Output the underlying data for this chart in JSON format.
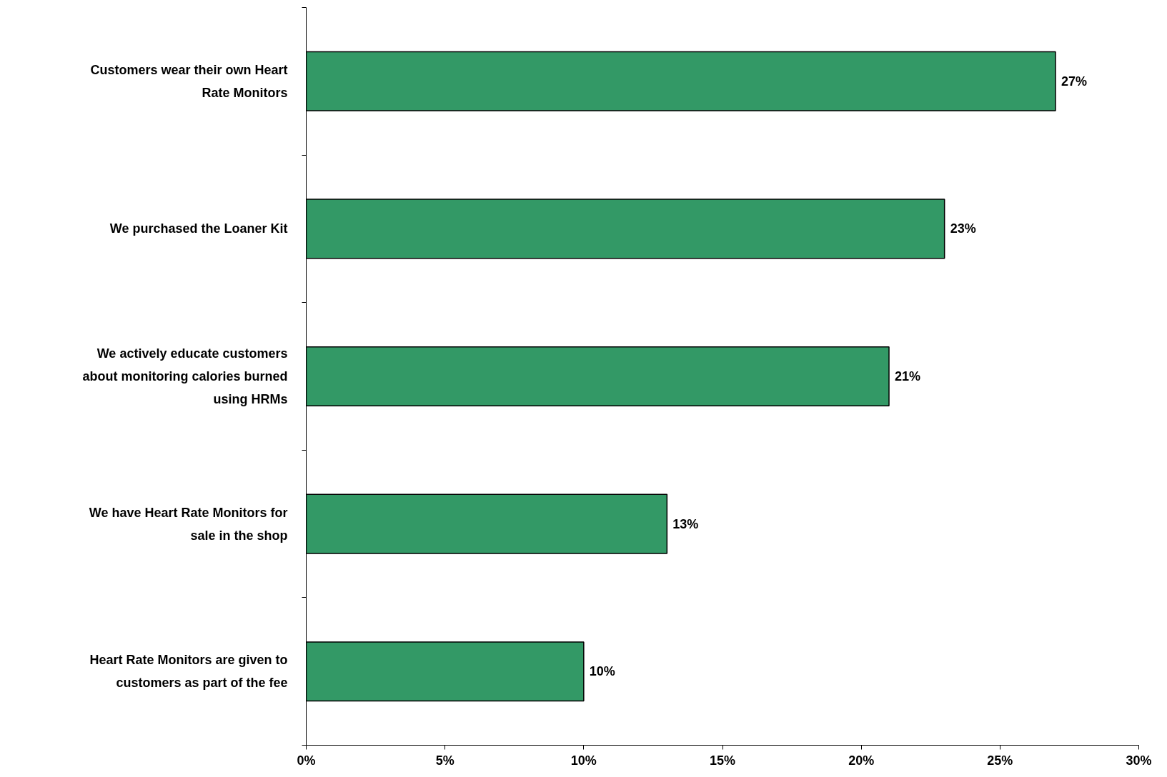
{
  "chart_data": {
    "type": "bar",
    "orientation": "horizontal",
    "categories": [
      "Customers wear their own Heart Rate Monitors",
      "We purchased the Loaner Kit",
      "We actively educate customers about monitoring calories burned using HRMs",
      "We have Heart Rate Monitors for sale in the shop",
      "Heart Rate Monitors are given to customers as part of the fee"
    ],
    "values": [
      27,
      23,
      21,
      13,
      10
    ],
    "value_labels": [
      "27%",
      "23%",
      "21%",
      "13%",
      "10%"
    ],
    "color": "#339966",
    "xlim": [
      0,
      30
    ],
    "xticks": [
      {
        "value": 0,
        "label": "0%"
      },
      {
        "value": 5,
        "label": "5%"
      },
      {
        "value": 10,
        "label": "10%"
      },
      {
        "value": 15,
        "label": "15%"
      },
      {
        "value": 20,
        "label": "20%"
      },
      {
        "value": 25,
        "label": "25%"
      },
      {
        "value": 30,
        "label": "30%"
      }
    ],
    "grid": false
  }
}
